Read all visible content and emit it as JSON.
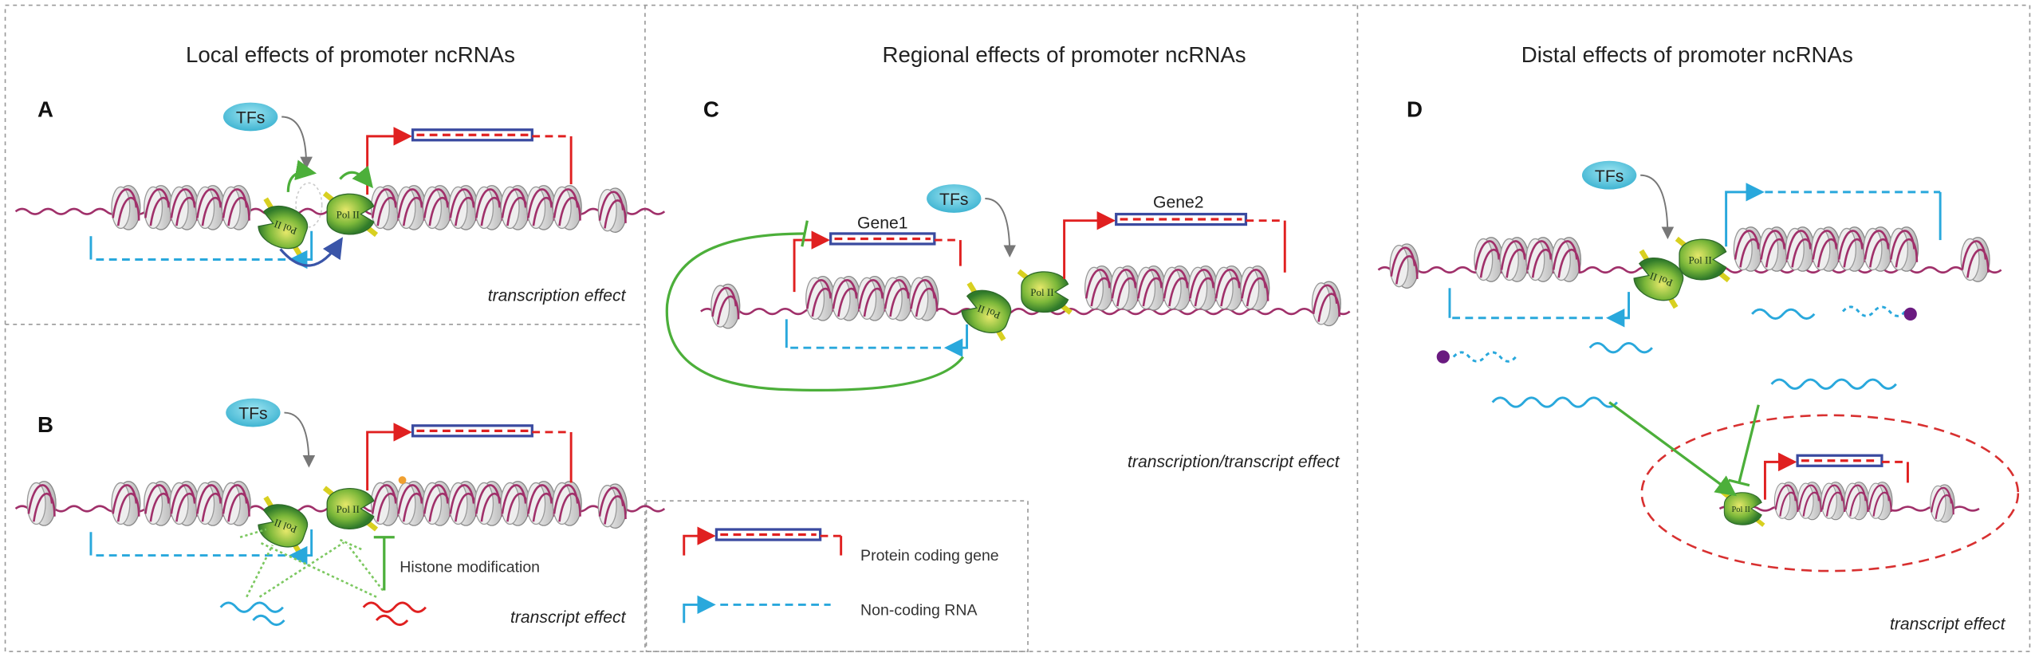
{
  "polymerase_label": "Pol II",
  "panels": [
    {
      "title": "Local effects of promoter ncRNAs",
      "subpanels": [
        {
          "letter": "A",
          "tf": "TFs",
          "effect": "transcription effect"
        },
        {
          "letter": "B",
          "tf": "TFs",
          "annotation": "Histone modification",
          "effect": "transcript effect"
        }
      ]
    },
    {
      "title": "Regional effects of promoter ncRNAs",
      "letter": "C",
      "tf": "TFs",
      "genes": [
        "Gene1",
        "Gene2"
      ],
      "effect": "transcription/transcript effect"
    },
    {
      "title": "Distal effects of promoter ncRNAs",
      "letter": "D",
      "tf": "TFs",
      "effect": "transcript effect"
    }
  ],
  "legend": [
    {
      "label": "Protein coding gene"
    },
    {
      "label": "Non-coding RNA"
    }
  ]
}
